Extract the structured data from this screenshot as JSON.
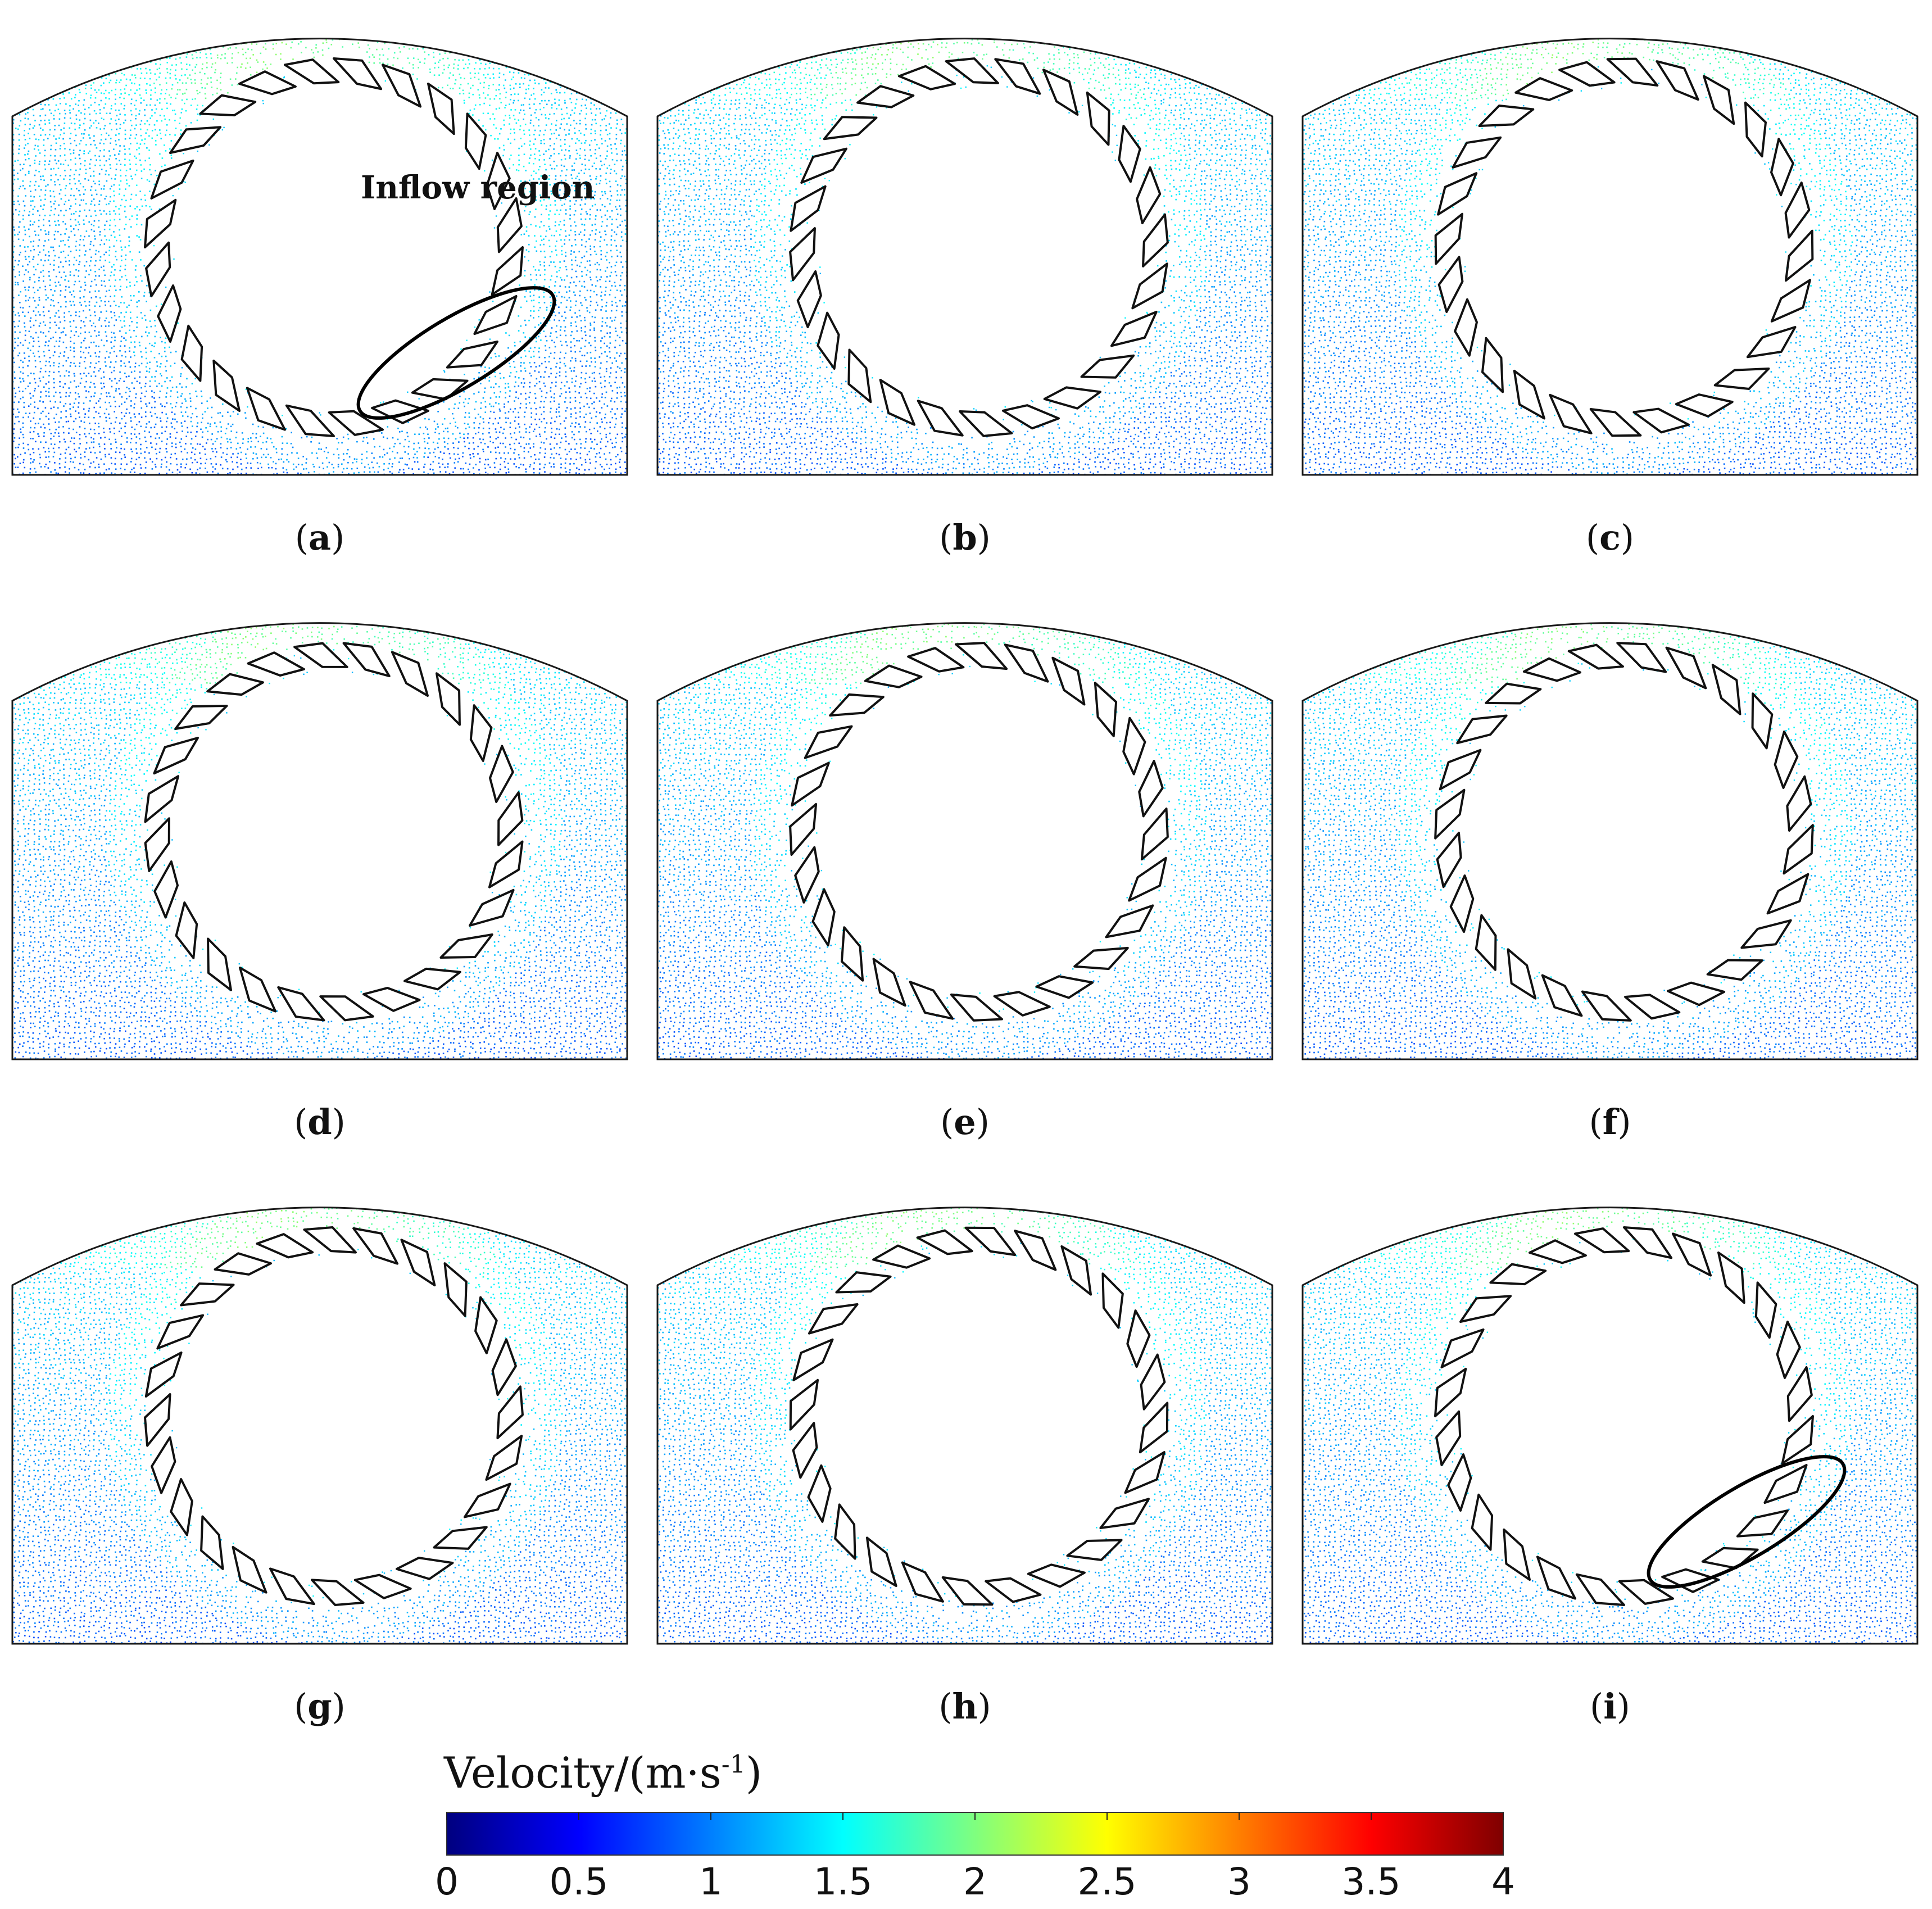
{
  "annotation": {
    "inflow_label": "Inflow region"
  },
  "panels": [
    {
      "id": "a",
      "label": "a",
      "rot": 0,
      "ellipse": true,
      "inflow_label": true
    },
    {
      "id": "b",
      "label": "b",
      "rot": 5,
      "ellipse": false,
      "inflow_label": false
    },
    {
      "id": "c",
      "label": "c",
      "rot": 10,
      "ellipse": false,
      "inflow_label": false
    },
    {
      "id": "d",
      "label": "d",
      "rot": 3,
      "ellipse": false,
      "inflow_label": false
    },
    {
      "id": "e",
      "label": "e",
      "rot": 8,
      "ellipse": false,
      "inflow_label": false
    },
    {
      "id": "f",
      "label": "f",
      "rot": 13,
      "ellipse": false,
      "inflow_label": false
    },
    {
      "id": "g",
      "label": "g",
      "rot": 6,
      "ellipse": false,
      "inflow_label": false
    },
    {
      "id": "h",
      "label": "h",
      "rot": 11,
      "ellipse": false,
      "inflow_label": false
    },
    {
      "id": "i",
      "label": "i",
      "rot": 0,
      "ellipse": true,
      "inflow_label": false
    }
  ],
  "colorbar": {
    "title_main": "Velocity/(m·s",
    "title_sup": "-1",
    "title_end": ")",
    "min": 0,
    "max": 4,
    "ticks": [
      "0",
      "0.5",
      "1",
      "1.5",
      "2",
      "2.5",
      "3",
      "3.5",
      "4"
    ],
    "colors": [
      "#00007f",
      "#0000ff",
      "#007fff",
      "#00ffff",
      "#7fff7f",
      "#ffff00",
      "#ff7f00",
      "#ff0000",
      "#7f0000"
    ]
  }
}
